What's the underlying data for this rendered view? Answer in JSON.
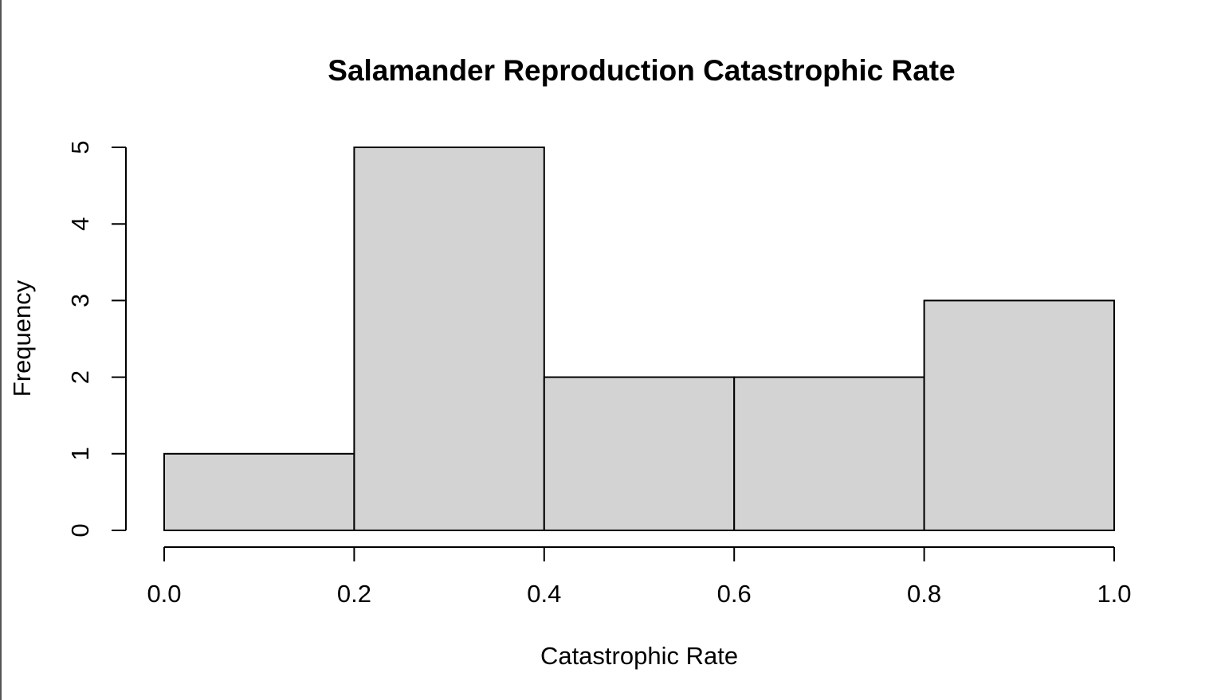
{
  "chart_data": {
    "type": "histogram",
    "title": "Salamander Reproduction Catastrophic Rate",
    "xlabel": "Catastrophic Rate",
    "ylabel": "Frequency",
    "bins": [
      {
        "start": 0.0,
        "end": 0.2,
        "count": 1
      },
      {
        "start": 0.2,
        "end": 0.4,
        "count": 5
      },
      {
        "start": 0.4,
        "end": 0.6,
        "count": 2
      },
      {
        "start": 0.6,
        "end": 0.8,
        "count": 2
      },
      {
        "start": 0.8,
        "end": 1.0,
        "count": 3
      }
    ],
    "xlim": [
      0.0,
      1.0
    ],
    "ylim": [
      0,
      5
    ],
    "x_ticks": [
      0.0,
      0.2,
      0.4,
      0.6,
      0.8,
      1.0
    ],
    "x_tick_labels": [
      "0.0",
      "0.2",
      "0.4",
      "0.6",
      "0.8",
      "1.0"
    ],
    "y_ticks": [
      0,
      1,
      2,
      3,
      4,
      5
    ],
    "y_tick_labels": [
      "0",
      "1",
      "2",
      "3",
      "4",
      "5"
    ],
    "bar_fill": "#d3d3d3",
    "bar_stroke": "#000000",
    "grid": false,
    "legend": "none"
  }
}
